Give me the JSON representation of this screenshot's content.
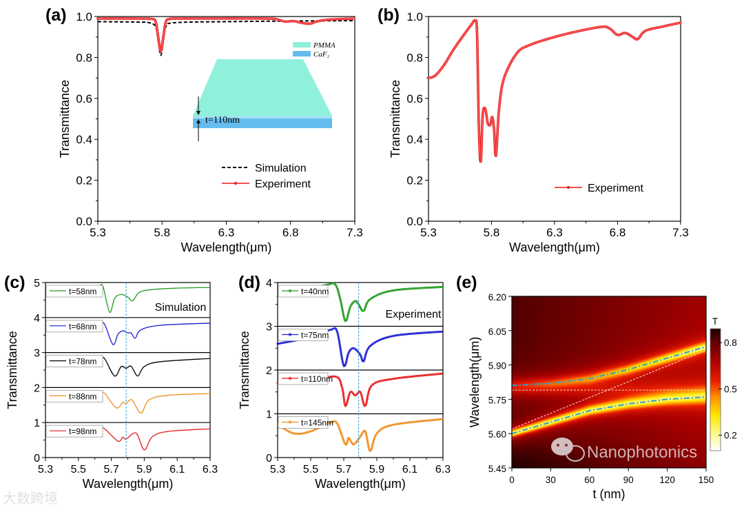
{
  "panels": {
    "a": "(a)",
    "b": "(b)",
    "c": "(c)",
    "d": "(d)",
    "e": "(e)"
  },
  "watermarks": {
    "left": "大数跨境",
    "right": "Nanophotonics"
  },
  "colors": {
    "red": "#e8191b",
    "green": "#1f9a1f",
    "blue": "#1a1ad0",
    "black": "#000000",
    "orange": "#f08c1c",
    "marker_line": "#2a9fd6",
    "pmma": "#8ff0dc",
    "caf2": "#64bdee"
  },
  "chart_data": [
    {
      "panel": "(a)",
      "type": "line",
      "xlabel": "Wavelength(μm)",
      "ylabel": "Transmittance",
      "xlim": [
        5.3,
        7.3
      ],
      "ylim": [
        0,
        1.0
      ],
      "xticks": [
        "5.3",
        "5.8",
        "6.3",
        "6.8",
        "7.3"
      ],
      "yticks": [
        "0.0",
        "0.2",
        "0.4",
        "0.6",
        "0.8",
        "1.0"
      ],
      "legend_position": "bottom-right",
      "series": [
        {
          "name": "Simulation",
          "style": "dashed",
          "color": "#000000",
          "x": [
            5.3,
            5.6,
            5.7,
            5.75,
            5.77,
            5.79,
            5.81,
            5.83,
            5.9,
            6.3,
            6.8,
            7.3
          ],
          "y": [
            0.975,
            0.973,
            0.97,
            0.95,
            0.88,
            0.81,
            0.88,
            0.95,
            0.97,
            0.975,
            0.978,
            0.98
          ]
        },
        {
          "name": "Experiment",
          "style": "line-marker",
          "color": "#e8191b",
          "x": [
            5.3,
            5.6,
            5.72,
            5.75,
            5.77,
            5.79,
            5.81,
            5.83,
            5.86,
            5.95,
            6.6,
            6.7,
            6.76,
            6.82,
            6.88,
            6.95,
            7.0,
            7.1,
            7.3
          ],
          "y": [
            0.99,
            0.99,
            0.988,
            0.975,
            0.9,
            0.83,
            0.9,
            0.975,
            0.988,
            0.99,
            0.99,
            0.985,
            0.975,
            0.978,
            0.97,
            0.965,
            0.975,
            0.985,
            0.99
          ]
        }
      ],
      "inset": {
        "layer_top": "PMMA",
        "layer_bottom": "CaF₂",
        "thickness_label": "t=110nm"
      }
    },
    {
      "panel": "(b)",
      "type": "line",
      "xlabel": "Wavelength(μm)",
      "ylabel": "Transmittance",
      "xlim": [
        5.3,
        7.3
      ],
      "ylim": [
        0,
        1.0
      ],
      "xticks": [
        "5.3",
        "5.8",
        "6.3",
        "6.8",
        "7.3"
      ],
      "yticks": [
        "0.0",
        "0.2",
        "0.4",
        "0.6",
        "0.8",
        "1.0"
      ],
      "legend_position": "bottom-center",
      "series": [
        {
          "name": "Experiment",
          "style": "line-marker",
          "color": "#e8191b",
          "x": [
            5.3,
            5.35,
            5.42,
            5.5,
            5.58,
            5.64,
            5.67,
            5.685,
            5.7,
            5.715,
            5.73,
            5.75,
            5.77,
            5.79,
            5.805,
            5.82,
            5.835,
            5.86,
            5.9,
            6.0,
            6.1,
            6.3,
            6.5,
            6.68,
            6.74,
            6.8,
            6.86,
            6.92,
            6.96,
            7.02,
            7.15,
            7.3
          ],
          "y": [
            0.7,
            0.71,
            0.76,
            0.84,
            0.91,
            0.96,
            0.98,
            0.92,
            0.45,
            0.29,
            0.52,
            0.55,
            0.48,
            0.47,
            0.51,
            0.45,
            0.32,
            0.55,
            0.7,
            0.82,
            0.86,
            0.9,
            0.93,
            0.95,
            0.94,
            0.91,
            0.92,
            0.9,
            0.89,
            0.93,
            0.95,
            0.97
          ]
        }
      ]
    },
    {
      "panel": "(c)",
      "type": "line",
      "stacked": true,
      "xlabel": "Wavelength(μm)",
      "ylabel": "Transmittance",
      "xlim": [
        5.3,
        6.3
      ],
      "ylim": [
        0,
        5
      ],
      "xticks": [
        "5.3",
        "5.5",
        "5.7",
        "5.9",
        "6.1",
        "6.3"
      ],
      "yticks": [
        "0",
        "1",
        "2",
        "3",
        "4",
        "5"
      ],
      "annotation": "Simulation",
      "reference_wavelength": 5.79,
      "series": [
        {
          "name": "t=58nm",
          "offset": 4,
          "color": "#1f9a1f",
          "x": [
            5.63,
            5.65,
            5.69,
            5.72,
            5.76,
            5.8,
            5.83,
            5.87,
            5.95,
            6.1,
            6.3
          ],
          "y": [
            0.92,
            0.88,
            0.15,
            0.55,
            0.66,
            0.58,
            0.48,
            0.72,
            0.8,
            0.84,
            0.86
          ]
        },
        {
          "name": "t=68nm",
          "offset": 3,
          "color": "#1a1ad0",
          "x": [
            5.63,
            5.66,
            5.71,
            5.74,
            5.77,
            5.8,
            5.82,
            5.845,
            5.88,
            6.0,
            6.3
          ],
          "y": [
            0.88,
            0.8,
            0.23,
            0.52,
            0.62,
            0.56,
            0.56,
            0.41,
            0.65,
            0.78,
            0.84
          ]
        },
        {
          "name": "t=78nm",
          "offset": 2,
          "color": "#000000",
          "x": [
            5.63,
            5.66,
            5.72,
            5.76,
            5.79,
            5.82,
            5.86,
            5.9,
            6.0,
            6.3
          ],
          "y": [
            0.88,
            0.82,
            0.33,
            0.6,
            0.55,
            0.61,
            0.33,
            0.6,
            0.74,
            0.83
          ]
        },
        {
          "name": "t=88nm",
          "offset": 1,
          "color": "#f08c1c",
          "x": [
            5.63,
            5.66,
            5.73,
            5.77,
            5.79,
            5.825,
            5.88,
            5.93,
            6.05,
            6.3
          ],
          "y": [
            0.87,
            0.83,
            0.42,
            0.58,
            0.54,
            0.65,
            0.27,
            0.65,
            0.78,
            0.83
          ]
        },
        {
          "name": "t=98nm",
          "offset": 0,
          "color": "#e8191b",
          "x": [
            5.63,
            5.66,
            5.74,
            5.77,
            5.79,
            5.85,
            5.9,
            5.95,
            6.05,
            6.3
          ],
          "y": [
            0.86,
            0.82,
            0.47,
            0.58,
            0.53,
            0.7,
            0.22,
            0.6,
            0.75,
            0.82
          ]
        }
      ]
    },
    {
      "panel": "(d)",
      "type": "line",
      "stacked": true,
      "xlabel": "Wavelength(μm)",
      "ylabel": "Transmittance",
      "xlim": [
        5.3,
        6.3
      ],
      "ylim": [
        0,
        4
      ],
      "xticks": [
        "5.3",
        "5.5",
        "5.7",
        "5.9",
        "6.1",
        "6.3"
      ],
      "yticks": [
        "0",
        "1",
        "2",
        "3",
        "4"
      ],
      "annotation": "Experiment",
      "reference_wavelength": 5.79,
      "series": [
        {
          "name": "t=40nm",
          "offset": 3,
          "color": "#1f9a1f",
          "x": [
            5.3,
            5.45,
            5.6,
            5.65,
            5.68,
            5.71,
            5.74,
            5.77,
            5.79,
            5.82,
            5.86,
            6.0,
            6.3
          ],
          "y": [
            0.68,
            0.8,
            0.95,
            0.95,
            0.6,
            0.12,
            0.45,
            0.58,
            0.5,
            0.35,
            0.62,
            0.82,
            0.9
          ]
        },
        {
          "name": "t=75nm",
          "offset": 2,
          "color": "#1a1ad0",
          "x": [
            5.3,
            5.5,
            5.62,
            5.66,
            5.7,
            5.73,
            5.76,
            5.8,
            5.82,
            5.86,
            6.0,
            6.3
          ],
          "y": [
            0.6,
            0.75,
            0.92,
            0.88,
            0.1,
            0.4,
            0.5,
            0.35,
            0.2,
            0.55,
            0.78,
            0.88
          ]
        },
        {
          "name": "t=110nm",
          "offset": 1,
          "color": "#e8191b",
          "x": [
            5.3,
            5.5,
            5.65,
            5.69,
            5.71,
            5.74,
            5.77,
            5.8,
            5.83,
            5.87,
            6.0,
            6.3
          ],
          "y": [
            0.7,
            0.75,
            0.85,
            0.6,
            0.18,
            0.5,
            0.42,
            0.5,
            0.18,
            0.65,
            0.8,
            0.92
          ]
        },
        {
          "name": "t=145nm",
          "offset": 0,
          "color": "#f08c1c",
          "x": [
            5.3,
            5.4,
            5.5,
            5.62,
            5.66,
            5.71,
            5.73,
            5.76,
            5.8,
            5.83,
            5.86,
            5.9,
            6.0,
            6.3
          ],
          "y": [
            0.75,
            0.55,
            0.6,
            0.8,
            0.78,
            0.3,
            0.45,
            0.3,
            0.48,
            0.6,
            0.15,
            0.55,
            0.75,
            0.88
          ]
        }
      ]
    },
    {
      "panel": "(e)",
      "type": "heatmap",
      "xlabel": "t (nm)",
      "ylabel": "Wavelength(μm)",
      "xlim": [
        0,
        150
      ],
      "ylim": [
        5.45,
        6.2
      ],
      "xticks": [
        "0",
        "30",
        "60",
        "90",
        "120",
        "150"
      ],
      "yticks": [
        "5.45",
        "5.60",
        "5.75",
        "5.90",
        "6.05",
        "6.20"
      ],
      "colorbar": {
        "label": "T",
        "ticks": [
          "0.2",
          "0.5",
          "0.8"
        ],
        "range": [
          0.1,
          0.89
        ]
      },
      "upper_branch": {
        "t": [
          0,
          30,
          60,
          90,
          120,
          150
        ],
        "wavelength": [
          5.81,
          5.82,
          5.84,
          5.88,
          5.93,
          5.98
        ]
      },
      "lower_branch": {
        "t": [
          0,
          30,
          60,
          90,
          120,
          150
        ],
        "wavelength": [
          5.6,
          5.65,
          5.7,
          5.73,
          5.75,
          5.76
        ]
      },
      "vibration_mode": {
        "t": [
          0,
          150
        ],
        "wavelength": [
          5.79,
          5.79
        ]
      },
      "cavity_mode": {
        "t": [
          0,
          150
        ],
        "wavelength": [
          5.62,
          5.965
        ]
      }
    }
  ]
}
